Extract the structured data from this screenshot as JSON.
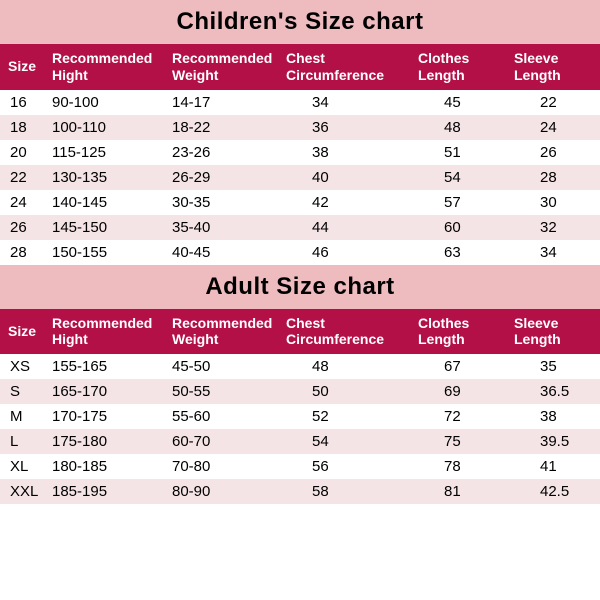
{
  "colors": {
    "title_bg": "#eebbbf",
    "title_text": "#000000",
    "header_bg": "#b31048",
    "header_text": "#ffffff",
    "row_odd_bg": "#ffffff",
    "row_even_bg": "#f5e4e6",
    "body_text": "#000000"
  },
  "typography": {
    "title_fontsize": 24,
    "title_fontweight": 900,
    "header_fontsize": 14,
    "body_fontsize": 15
  },
  "children": {
    "title": "Children's Size chart",
    "columns": [
      "Size",
      "Recommended Hight",
      "Recommended Weight",
      "Chest Circumference",
      "Clothes Length",
      "Sleeve Length"
    ],
    "col_keys": [
      "size",
      "height",
      "weight",
      "chest",
      "clothes",
      "sleeve"
    ],
    "rows": [
      {
        "size": "16",
        "height": "90-100",
        "weight": "14-17",
        "chest": "34",
        "clothes": "45",
        "sleeve": "22"
      },
      {
        "size": "18",
        "height": "100-110",
        "weight": "18-22",
        "chest": "36",
        "clothes": "48",
        "sleeve": "24"
      },
      {
        "size": "20",
        "height": "115-125",
        "weight": "23-26",
        "chest": "38",
        "clothes": "51",
        "sleeve": "26"
      },
      {
        "size": "22",
        "height": "130-135",
        "weight": "26-29",
        "chest": "40",
        "clothes": "54",
        "sleeve": "28"
      },
      {
        "size": "24",
        "height": "140-145",
        "weight": "30-35",
        "chest": "42",
        "clothes": "57",
        "sleeve": "30"
      },
      {
        "size": "26",
        "height": "145-150",
        "weight": "35-40",
        "chest": "44",
        "clothes": "60",
        "sleeve": "32"
      },
      {
        "size": "28",
        "height": "150-155",
        "weight": "40-45",
        "chest": "46",
        "clothes": "63",
        "sleeve": "34"
      }
    ]
  },
  "adult": {
    "title": "Adult Size chart",
    "columns": [
      "Size",
      "Recommended Hight",
      "Recommended Weight",
      "Chest Circumference",
      "Clothes Length",
      "Sleeve Length"
    ],
    "col_keys": [
      "size",
      "height",
      "weight",
      "chest",
      "clothes",
      "sleeve"
    ],
    "rows": [
      {
        "size": "XS",
        "height": "155-165",
        "weight": "45-50",
        "chest": "48",
        "clothes": "67",
        "sleeve": "35"
      },
      {
        "size": "S",
        "height": "165-170",
        "weight": "50-55",
        "chest": "50",
        "clothes": "69",
        "sleeve": "36.5"
      },
      {
        "size": "M",
        "height": "170-175",
        "weight": "55-60",
        "chest": "52",
        "clothes": "72",
        "sleeve": "38"
      },
      {
        "size": "L",
        "height": "175-180",
        "weight": "60-70",
        "chest": "54",
        "clothes": "75",
        "sleeve": "39.5"
      },
      {
        "size": "XL",
        "height": "180-185",
        "weight": "70-80",
        "chest": "56",
        "clothes": "78",
        "sleeve": "41"
      },
      {
        "size": "XXL",
        "height": "185-195",
        "weight": "80-90",
        "chest": "58",
        "clothes": "81",
        "sleeve": "42.5"
      }
    ]
  }
}
